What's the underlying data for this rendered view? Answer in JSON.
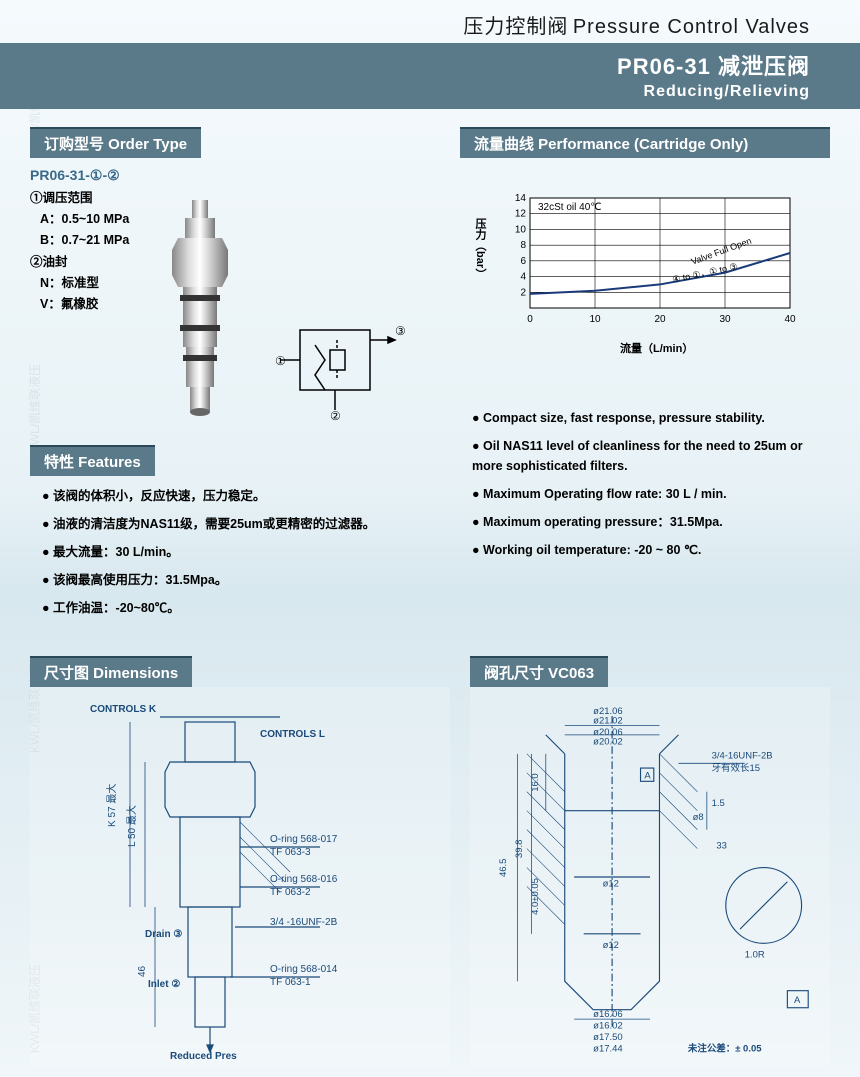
{
  "header": {
    "title_cn": "压力控制阀",
    "title_en": "Pressure Control Valves",
    "banner_code": "PR06-31",
    "banner_cn": "减泄压阀",
    "banner_en": "Reducing/Relieving"
  },
  "order_type": {
    "heading": "订购型号 Order Type",
    "code": "PR06-31-①-②",
    "param1_label": "①调压范围",
    "param1_a": "A：0.5~10 MPa",
    "param1_b": "B：0.7~21 MPa",
    "param2_label": "②油封",
    "param2_n": "N：标准型",
    "param2_v": "V：氟橡胶"
  },
  "schematic": {
    "ports": {
      "1": "①",
      "2": "②",
      "3": "③"
    }
  },
  "performance": {
    "heading": "流量曲线 Performance (Cartridge Only)",
    "ylabel": "压力（bar）",
    "xlabel": "流量（L/min）",
    "note": "32cSt oil 40℃",
    "curve_label_top": "Valve Full Open",
    "curve_label_bottom": "④ to ①，① to ③",
    "xlim": [
      0,
      40
    ],
    "ylim": [
      0,
      14
    ],
    "xticks": [
      0,
      10,
      20,
      30,
      40
    ],
    "yticks": [
      2,
      4,
      6,
      8,
      10,
      12,
      14
    ],
    "points": [
      [
        0,
        1.8
      ],
      [
        10,
        2.2
      ],
      [
        20,
        3.0
      ],
      [
        30,
        4.5
      ],
      [
        40,
        7.0
      ]
    ],
    "line_color": "#1a3a7a",
    "grid_color": "#000000",
    "bg_color": "#ffffff"
  },
  "features": {
    "heading": "特性 Features",
    "cn": [
      "该阀的体积小，反应快速，压力稳定。",
      "油液的清洁度为NAS11级，需要25um或更精密的过滤器。",
      "最大流量：30 L/min。",
      "该阀最高使用压力：31.5Mpa。",
      "工作油温：-20~80℃。"
    ],
    "en": [
      "Compact size, fast response, pressure stability.",
      "Oil NAS11 level of cleanliness for the need to 25um or more sophisticated filters.",
      "Maximum Operating flow rate: 30 L / min.",
      "Maximum operating pressure：31.5Mpa.",
      "Working oil temperature: -20 ~ 80 ℃."
    ]
  },
  "dimensions": {
    "heading": "尺寸图 Dimensions",
    "labels": {
      "controls_k": "CONTROLS K",
      "controls_l": "CONTROLS L",
      "k57": "K 57 最大",
      "l50": "L 50 最大",
      "h46": "46",
      "drain": "Drain ③",
      "inlet": "Inlet ②",
      "reduced": "Reduced Pres",
      "oring1": "O-ring 568-017",
      "tf1": "TF 063-3",
      "oring2": "O-ring 568-016",
      "tf2": "TF 063-2",
      "thread": "3/4 -16UNF-2B",
      "oring3": "O-ring 568-014",
      "tf3": "TF 063-1"
    }
  },
  "cavity": {
    "heading": "阀孔尺寸 VC063",
    "dims": {
      "d1": "ø21.06",
      "d1b": "ø21.02",
      "d2": "ø20.06",
      "d2b": "ø20.02",
      "thread": "3/4-16UNF-2B",
      "thread_note": "牙有效长15",
      "h1": "46.5",
      "h2": "39.8",
      "h3": "16.0",
      "h4": "4.0±0.05",
      "s1": "1.5",
      "s2": "33",
      "s3": "ø8",
      "d3": "ø12",
      "d4": "ø12",
      "d5": "ø16.06",
      "d5b": "ø16.02",
      "d6": "ø17.50",
      "d6b": "ø17.44",
      "r": "1.0R",
      "tol": "未注公差：± 0.05",
      "datum": "A"
    }
  },
  "watermark": "KWL/凯维联液压",
  "colors": {
    "banner_bg": "#5a7a8a",
    "banner_border": "#2a4a5a",
    "text": "#1a1a1a",
    "accent": "#3a6a8a",
    "drawing_line": "#1a4a7a"
  }
}
